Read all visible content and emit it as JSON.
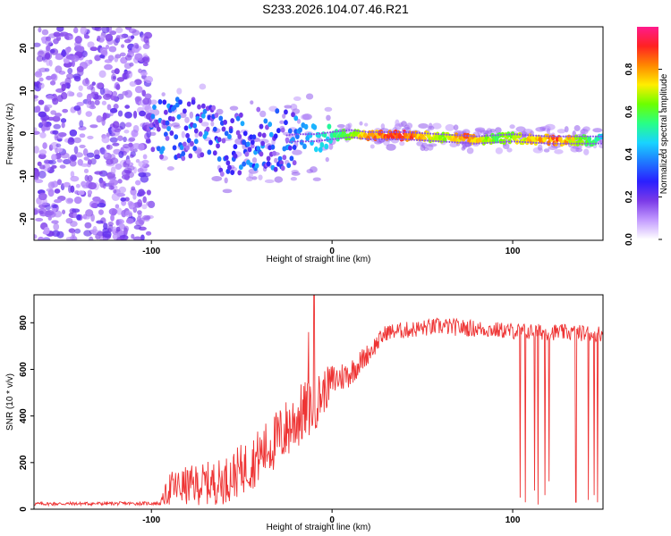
{
  "title": "S233.2026.104.07.46.R21",
  "colors": {
    "snr_line": "#ee3333",
    "colormap": [
      "#ffffff",
      "#c39bff",
      "#7b3ae8",
      "#2a1fff",
      "#1f78ff",
      "#19d3ff",
      "#28ff86",
      "#6cff00",
      "#ffee00",
      "#ff8800",
      "#ff2222",
      "#ff1a8c"
    ]
  },
  "chart_data": [
    {
      "type": "heatmap",
      "name": "spectrogram",
      "title": "S233.2026.104.07.46.R21",
      "xlabel": "Height of straight line (km)",
      "ylabel": "Frequency (Hz)",
      "xlim": [
        -165,
        150
      ],
      "ylim": [
        -25,
        25
      ],
      "xticks": [
        -100,
        0,
        100
      ],
      "yticks": [
        -20,
        -10,
        0,
        10,
        20
      ],
      "colorbar": {
        "label": "Normalized spectral amplitude",
        "range": [
          0,
          1
        ],
        "ticks": [
          "0.0",
          "0.2",
          "0.4",
          "0.6",
          "0.8"
        ]
      },
      "noise_region_x": [
        -165,
        -100
      ],
      "ridge": [
        {
          "x": -100,
          "f": 0.5
        },
        {
          "x": -90,
          "f": 1.5
        },
        {
          "x": -80,
          "f": 1.0
        },
        {
          "x": -70,
          "f": 1.5
        },
        {
          "x": -60,
          "f": -4.0
        },
        {
          "x": -50,
          "f": -2.0
        },
        {
          "x": -40,
          "f": -1.0
        },
        {
          "x": -30,
          "f": -1.5
        },
        {
          "x": -20,
          "f": -1.0
        },
        {
          "x": -10,
          "f": -1.0
        },
        {
          "x": 0,
          "f": -0.5
        },
        {
          "x": 10,
          "f": 0.0
        },
        {
          "x": 20,
          "f": -0.5
        },
        {
          "x": 40,
          "f": -0.5
        },
        {
          "x": 60,
          "f": -1.0
        },
        {
          "x": 80,
          "f": -1.5
        },
        {
          "x": 100,
          "f": -1.0
        },
        {
          "x": 120,
          "f": -1.5
        },
        {
          "x": 150,
          "f": -1.5
        }
      ],
      "ridge_amplitude": [
        {
          "x": -100,
          "a": 0.35
        },
        {
          "x": -60,
          "a": 0.35
        },
        {
          "x": -20,
          "a": 0.4
        },
        {
          "x": 0,
          "a": 0.55
        },
        {
          "x": 10,
          "a": 0.7
        },
        {
          "x": 20,
          "a": 0.85
        },
        {
          "x": 40,
          "a": 0.95
        },
        {
          "x": 60,
          "a": 0.7
        },
        {
          "x": 75,
          "a": 0.9
        },
        {
          "x": 90,
          "a": 0.65
        },
        {
          "x": 110,
          "a": 0.8
        },
        {
          "x": 125,
          "a": 0.9
        },
        {
          "x": 150,
          "a": 0.5
        }
      ]
    },
    {
      "type": "line",
      "name": "snr",
      "xlabel": "Height of straight line (km)",
      "ylabel": "SNR (10 * v/v)",
      "xlim": [
        -165,
        150
      ],
      "ylim": [
        0,
        920
      ],
      "xticks": [
        -100,
        0,
        100
      ],
      "yticks": [
        0,
        200,
        400,
        600,
        800
      ],
      "envelope": [
        {
          "x": -165,
          "base": 20,
          "amp": 15
        },
        {
          "x": -95,
          "base": 22,
          "amp": 15
        },
        {
          "x": -90,
          "base": 60,
          "amp": 150
        },
        {
          "x": -60,
          "base": 80,
          "amp": 200
        },
        {
          "x": -45,
          "base": 150,
          "amp": 230
        },
        {
          "x": -30,
          "base": 250,
          "amp": 260
        },
        {
          "x": -20,
          "base": 330,
          "amp": 280
        },
        {
          "x": -10,
          "base": 400,
          "amp": 250
        },
        {
          "x": 0,
          "base": 520,
          "amp": 150
        },
        {
          "x": 10,
          "base": 560,
          "amp": 120
        },
        {
          "x": 20,
          "base": 650,
          "amp": 90
        },
        {
          "x": 30,
          "base": 745,
          "amp": 70
        },
        {
          "x": 60,
          "base": 770,
          "amp": 75
        },
        {
          "x": 100,
          "base": 750,
          "amp": 70
        },
        {
          "x": 150,
          "base": 740,
          "amp": 70
        }
      ],
      "spikes": [
        {
          "x": -10,
          "y": 920
        },
        {
          "x": -13,
          "y": 760
        }
      ],
      "dropouts": [
        {
          "x": 104,
          "y": 50
        },
        {
          "x": 107,
          "y": 30
        },
        {
          "x": 112,
          "y": 80
        },
        {
          "x": 114,
          "y": 20
        },
        {
          "x": 118,
          "y": 60
        },
        {
          "x": 120,
          "y": 120
        },
        {
          "x": 135,
          "y": 30
        },
        {
          "x": 142,
          "y": 40
        },
        {
          "x": 145,
          "y": 60
        },
        {
          "x": 147,
          "y": 30
        }
      ]
    }
  ]
}
